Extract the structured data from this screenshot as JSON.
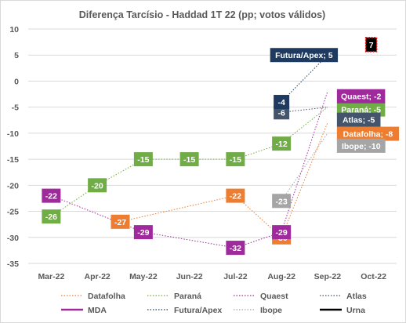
{
  "chart_data": {
    "type": "line",
    "title": "Diferença Tarcísio - Haddad 1T 22 (pp; votos válidos)",
    "categories": [
      "Mar-22",
      "Apr-22",
      "May-22",
      "Jun-22",
      "Jul-22",
      "Aug-22",
      "Sep-22",
      "Oct-22"
    ],
    "ylim": [
      -35,
      10
    ],
    "yticks": [
      10,
      5,
      0,
      -5,
      -10,
      -15,
      -20,
      -25,
      -30,
      -35
    ],
    "grid": true,
    "legend_position": "bottom",
    "series": [
      {
        "name": "Datafolha",
        "color": "#ed7d31",
        "dash": "dotted",
        "points": [
          [
            1.5,
            -27
          ],
          [
            4,
            -22
          ],
          [
            5,
            -30
          ],
          [
            6,
            -8
          ]
        ],
        "labels": [
          {
            "x": 1.5,
            "y": -27,
            "text": "-27"
          },
          {
            "x": 4,
            "y": -22,
            "text": "-22"
          },
          {
            "x": 5,
            "y": -30,
            "text": "-30"
          },
          {
            "x": 6,
            "y": -8,
            "text": "Datafolha; -8"
          }
        ]
      },
      {
        "name": "Paraná",
        "color": "#70ad47",
        "dash": "dotted",
        "points": [
          [
            0,
            -26
          ],
          [
            1,
            -20
          ],
          [
            2,
            -15
          ],
          [
            3,
            -15
          ],
          [
            4,
            -15
          ],
          [
            5,
            -12
          ],
          [
            6,
            -5
          ]
        ],
        "labels": [
          {
            "x": 0,
            "y": -26,
            "text": "-26"
          },
          {
            "x": 1,
            "y": -20,
            "text": "-20"
          },
          {
            "x": 2,
            "y": -15,
            "text": "-15"
          },
          {
            "x": 3,
            "y": -15,
            "text": "-15"
          },
          {
            "x": 4,
            "y": -15,
            "text": "-15"
          },
          {
            "x": 5,
            "y": -12,
            "text": "-12"
          },
          {
            "x": 6,
            "y": -5,
            "text": "Paraná; -5"
          }
        ]
      },
      {
        "name": "Quaest",
        "color": "#9e2a9b",
        "dash": "dotted",
        "points": [
          [
            0,
            -22
          ],
          [
            2,
            -29
          ],
          [
            4,
            -32
          ],
          [
            5,
            -29
          ],
          [
            6,
            -2
          ]
        ],
        "labels": [
          {
            "x": 0,
            "y": -22,
            "text": "-22"
          },
          {
            "x": 2,
            "y": -29,
            "text": "-29"
          },
          {
            "x": 4,
            "y": -32,
            "text": "-32"
          },
          {
            "x": 5,
            "y": -29,
            "text": "-29"
          },
          {
            "x": 6,
            "y": -2,
            "text": "Quaest; -2"
          }
        ]
      },
      {
        "name": "Atlas",
        "color": "#44546a",
        "dash": "dotted",
        "points": [
          [
            5,
            -6
          ],
          [
            6,
            -5
          ]
        ],
        "labels": [
          {
            "x": 5,
            "y": -6,
            "text": "-6"
          },
          {
            "x": 6,
            "y": -5,
            "text": "Atlas; -5"
          }
        ]
      },
      {
        "name": "MDA",
        "color": "#9e2a9b",
        "dash": "solid",
        "points": [],
        "labels": []
      },
      {
        "name": "Futura/Apex",
        "color": "#1f3a5f",
        "dash": "dotted",
        "points": [
          [
            5,
            -4
          ],
          [
            6,
            5
          ]
        ],
        "labels": [
          {
            "x": 5,
            "y": -4,
            "text": "-4"
          },
          {
            "x": 6,
            "y": 5,
            "text": "Futura/Apex; 5"
          }
        ]
      },
      {
        "name": "Ibope",
        "color": "#a5a5a5",
        "dash": "dotted",
        "points": [
          [
            5,
            -23
          ],
          [
            6,
            -10
          ]
        ],
        "labels": [
          {
            "x": 5,
            "y": -23,
            "text": "-23"
          },
          {
            "x": 6,
            "y": -10,
            "text": "Ibope; -10"
          }
        ]
      },
      {
        "name": "Urna",
        "color": "#000000",
        "dash": "solid",
        "points": [
          [
            7,
            7
          ]
        ],
        "labels": [
          {
            "x": 7,
            "y": 7,
            "text": "7"
          }
        ]
      }
    ]
  }
}
